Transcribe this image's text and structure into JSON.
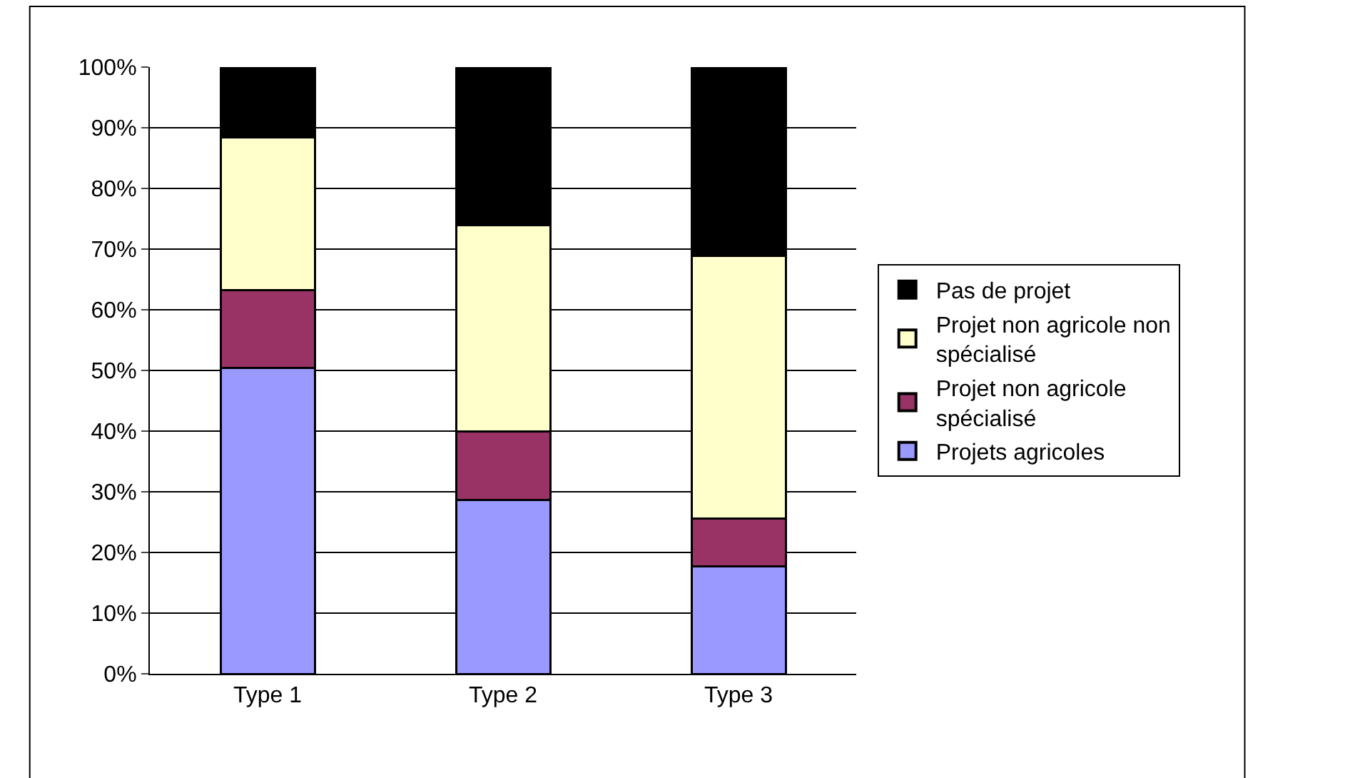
{
  "chart_data": {
    "type": "bar",
    "stacked": true,
    "categories": [
      "Type 1",
      "Type 2",
      "Type 3"
    ],
    "series": [
      {
        "name": "Projets agricoles",
        "color": "#9999ff",
        "values": [
          50.4,
          28.6,
          17.7
        ]
      },
      {
        "name": "Projet non agricole spécialisé",
        "color": "#993366",
        "values": [
          12.8,
          11.4,
          7.9
        ]
      },
      {
        "name": "Projet non agricole non spécialisé",
        "color": "#ffffcc",
        "values": [
          25.2,
          33.9,
          43.3
        ]
      },
      {
        "name": "Pas de projet",
        "color": "#000000",
        "values": [
          11.6,
          26.1,
          31.1
        ]
      }
    ],
    "ylim": [
      0,
      100
    ],
    "yticks": [
      {
        "value": 0,
        "label": "0%"
      },
      {
        "value": 10,
        "label": "10%"
      },
      {
        "value": 20,
        "label": "20%"
      },
      {
        "value": 30,
        "label": "30%"
      },
      {
        "value": 40,
        "label": "40%"
      },
      {
        "value": 50,
        "label": "50%"
      },
      {
        "value": 60,
        "label": "60%"
      },
      {
        "value": 70,
        "label": "70%"
      },
      {
        "value": 80,
        "label": "80%"
      },
      {
        "value": 90,
        "label": "90%"
      },
      {
        "value": 100,
        "label": "100%"
      }
    ],
    "grid": "y",
    "legend": "right"
  }
}
